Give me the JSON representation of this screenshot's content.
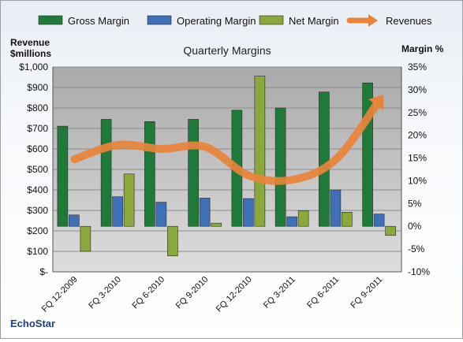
{
  "chart_data": {
    "type": "bar",
    "title": "Quarterly Margins",
    "categories": [
      "FQ 12-2009",
      "FQ 3-2010",
      "FQ 6-2010",
      "FQ 9-2010",
      "FQ 12-2010",
      "FQ 3-2011",
      "FQ 6-2011",
      "FQ 9-2011"
    ],
    "series": [
      {
        "name": "Gross Margin",
        "axis": "right",
        "values": [
          22,
          23.5,
          23,
          23.5,
          25.5,
          26,
          29.5,
          31.5
        ],
        "color": "#1f7a3a"
      },
      {
        "name": "Operating Margin",
        "axis": "right",
        "values": [
          2.5,
          6.5,
          5.3,
          6.2,
          6.1,
          2.1,
          8,
          2.7
        ],
        "color": "#3f6fb5"
      },
      {
        "name": "Net Margin",
        "axis": "right",
        "values": [
          -5.5,
          11.5,
          -6.5,
          0.7,
          33,
          3.4,
          3.1,
          -2
        ],
        "color": "#8aa83c"
      },
      {
        "name": "Revenues",
        "axis": "left",
        "type": "line",
        "values": [
          550,
          620,
          600,
          610,
          470,
          450,
          550,
          840
        ],
        "color": "#e8833a"
      }
    ],
    "left_axis": {
      "label_line1": "Revenue",
      "label_line2": "$millions",
      "range": [
        0,
        1000
      ],
      "ticks": [
        "$-",
        "$100",
        "$200",
        "$300",
        "$400",
        "$500",
        "$600",
        "$700",
        "$800",
        "$900",
        "$1,000"
      ]
    },
    "right_axis": {
      "label": "Margin %",
      "range": [
        -10,
        35
      ],
      "ticks": [
        "-10%",
        "-5%",
        "0%",
        "5%",
        "10%",
        "15%",
        "20%",
        "25%",
        "30%",
        "35%"
      ]
    },
    "legend_position": "top",
    "grid": true,
    "brand": "EchoStar"
  }
}
